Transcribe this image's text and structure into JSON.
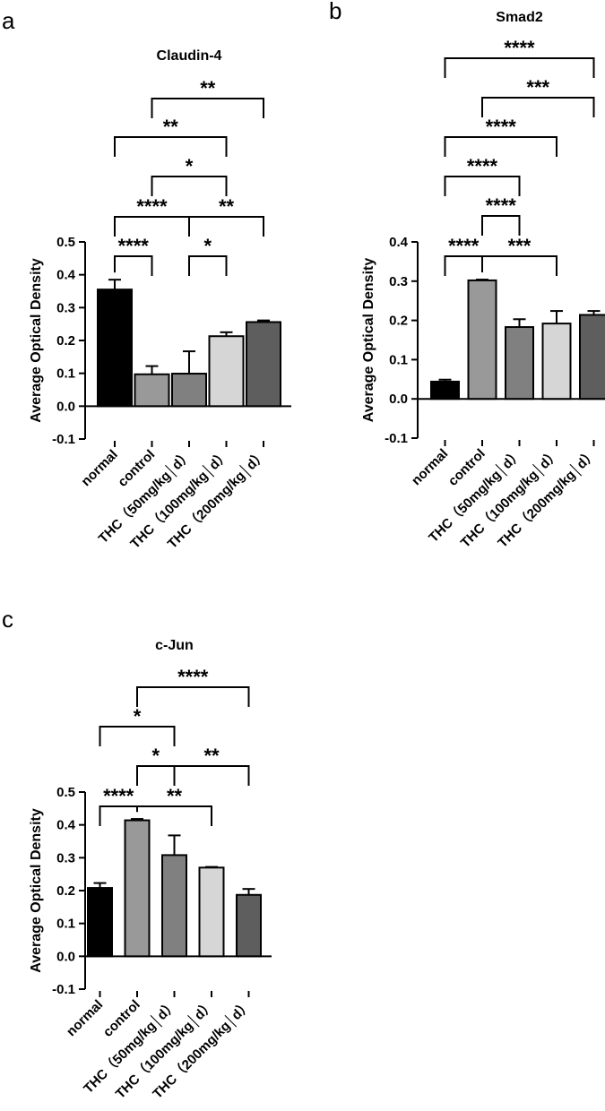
{
  "panels": [
    {
      "label": "a",
      "chart_data": {
        "type": "bar",
        "title": "Claudin-4",
        "ylabel": "Average Optical Density",
        "xlabel": "",
        "ylim": [
          -0.1,
          0.5
        ],
        "yticks": [
          -0.1,
          0.0,
          0.1,
          0.2,
          0.3,
          0.4,
          0.5
        ],
        "ytick_labels": [
          "-0.1",
          "0.0",
          "0.1",
          "0.2",
          "0.3",
          "0.4",
          "0.5"
        ],
        "categories": [
          "normal",
          "control",
          "THC（50mg/kg│d）",
          "THC（100mg/kg│d）",
          "THC（200mg/kg│d）"
        ],
        "values": [
          0.355,
          0.097,
          0.099,
          0.213,
          0.256
        ],
        "errors": [
          0.03,
          0.025,
          0.068,
          0.012,
          0.005
        ],
        "colors": [
          "#000000",
          "#999999",
          "#808080",
          "#d6d6d6",
          "#5e5e5e"
        ],
        "comparisons": [
          {
            "from": 0,
            "to": 1,
            "label": "****"
          },
          {
            "from": 2,
            "to": 3,
            "label": "*"
          },
          {
            "from": 0,
            "to": 2,
            "label": "****"
          },
          {
            "from": 2,
            "to": 4,
            "label": "**"
          },
          {
            "from": 1,
            "to": 3,
            "label": "*"
          },
          {
            "from": 0,
            "to": 3,
            "label": "**"
          },
          {
            "from": 1,
            "to": 4,
            "label": "**"
          }
        ]
      }
    },
    {
      "label": "b",
      "chart_data": {
        "type": "bar",
        "title": "Smad2",
        "ylabel": "Average Optical Density",
        "xlabel": "",
        "ylim": [
          -0.1,
          0.4
        ],
        "yticks": [
          -0.1,
          0.0,
          0.1,
          0.2,
          0.3,
          0.4
        ],
        "ytick_labels": [
          "-0.1",
          "0.0",
          "0.1",
          "0.2",
          "0.3",
          "0.4"
        ],
        "categories": [
          "normal",
          "control",
          "THC（50mg/kg│d）",
          "THC（100mg/kg│d）",
          "THC（200mg/kg│d）"
        ],
        "values": [
          0.044,
          0.302,
          0.183,
          0.192,
          0.214
        ],
        "errors": [
          0.005,
          0.002,
          0.02,
          0.032,
          0.01
        ],
        "colors": [
          "#000000",
          "#999999",
          "#808080",
          "#d6d6d6",
          "#5e5e5e"
        ],
        "comparisons": [
          {
            "from": 0,
            "to": 1,
            "label": "****"
          },
          {
            "from": 1,
            "to": 3,
            "label": "***"
          },
          {
            "from": 1,
            "to": 2,
            "label": "****"
          },
          {
            "from": 0,
            "to": 2,
            "label": "****"
          },
          {
            "from": 0,
            "to": 3,
            "label": "****"
          },
          {
            "from": 1,
            "to": 4,
            "label": "***"
          },
          {
            "from": 0,
            "to": 4,
            "label": "****"
          }
        ]
      }
    },
    {
      "label": "c",
      "chart_data": {
        "type": "bar",
        "title": "c-Jun",
        "ylabel": "Average Optical Density",
        "xlabel": "",
        "ylim": [
          -0.1,
          0.5
        ],
        "yticks": [
          -0.1,
          0.0,
          0.1,
          0.2,
          0.3,
          0.4,
          0.5
        ],
        "ytick_labels": [
          "-0.1",
          "0.0",
          "0.1",
          "0.2",
          "0.3",
          "0.4",
          "0.5"
        ],
        "categories": [
          "normal",
          "control",
          "THC（50mg/kg│d）",
          "THC（100mg/kg│d）",
          "THC（200mg/kg│d）"
        ],
        "values": [
          0.208,
          0.414,
          0.308,
          0.27,
          0.187
        ],
        "errors": [
          0.015,
          0.004,
          0.06,
          0.002,
          0.018
        ],
        "colors": [
          "#000000",
          "#999999",
          "#808080",
          "#d6d6d6",
          "#5e5e5e"
        ],
        "comparisons": [
          {
            "from": 0,
            "to": 1,
            "label": "****"
          },
          {
            "from": 1,
            "to": 3,
            "label": "**"
          },
          {
            "from": 1,
            "to": 2,
            "label": "*"
          },
          {
            "from": 2,
            "to": 4,
            "label": "**"
          },
          {
            "from": 0,
            "to": 2,
            "label": "*"
          },
          {
            "from": 1,
            "to": 4,
            "label": "****"
          }
        ]
      }
    }
  ]
}
